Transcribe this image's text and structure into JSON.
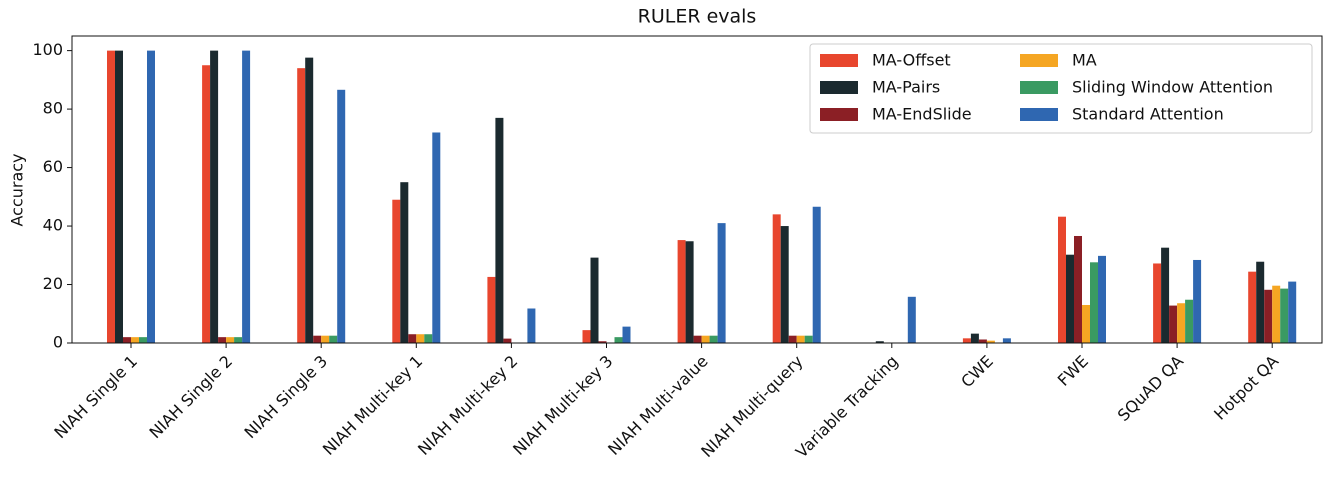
{
  "chart_data": {
    "type": "bar",
    "title": "RULER evals",
    "y_label": "Accuracy",
    "categories": [
      "NIAH Single 1",
      "NIAH Single 2",
      "NIAH Single 3",
      "NIAH Multi-key 1",
      "NIAH Multi-key 2",
      "NIAH Multi-key 3",
      "NIAH Multi-value",
      "NIAH Multi-query",
      "Variable Tracking",
      "CWE",
      "FWE",
      "SQuAD QA",
      "Hotpot QA"
    ],
    "series": [
      {
        "name": "MA-Offset",
        "color": "#e8462e",
        "values": [
          100,
          95,
          94,
          49,
          22.6,
          4.4,
          35.2,
          44,
          0,
          1.6,
          43.2,
          27.2,
          24.4
        ]
      },
      {
        "name": "MA-Pairs",
        "color": "#1b2a2f",
        "values": [
          100,
          100,
          97.6,
          55,
          77,
          29.2,
          34.8,
          40,
          0.6,
          3.2,
          30.2,
          32.6,
          27.8
        ]
      },
      {
        "name": "MA-EndSlide",
        "color": "#8b1f25",
        "values": [
          2,
          2,
          2.5,
          3,
          1.5,
          0.6,
          2.5,
          2.5,
          0,
          1.2,
          36.6,
          12.8,
          18.2
        ]
      },
      {
        "name": "MA",
        "color": "#f5a623",
        "values": [
          2,
          2,
          2.5,
          3,
          0,
          0,
          2.5,
          2.5,
          0,
          0.8,
          13,
          13.6,
          19.6
        ]
      },
      {
        "name": "Sliding Window Attention",
        "color": "#3a9a62",
        "values": [
          2,
          2,
          2.5,
          3,
          0,
          2,
          2.5,
          2.5,
          0,
          0,
          27.6,
          14.8,
          18.6
        ]
      },
      {
        "name": "Standard Attention",
        "color": "#2f67b1",
        "values": [
          100,
          100,
          86.6,
          72,
          11.8,
          5.6,
          41,
          46.6,
          15.8,
          1.6,
          29.8,
          28.4,
          21
        ]
      }
    ],
    "ylim": [
      0,
      105
    ],
    "yticks": [
      0,
      20,
      40,
      60,
      80,
      100
    ],
    "grid": false,
    "legend": "upper right"
  }
}
